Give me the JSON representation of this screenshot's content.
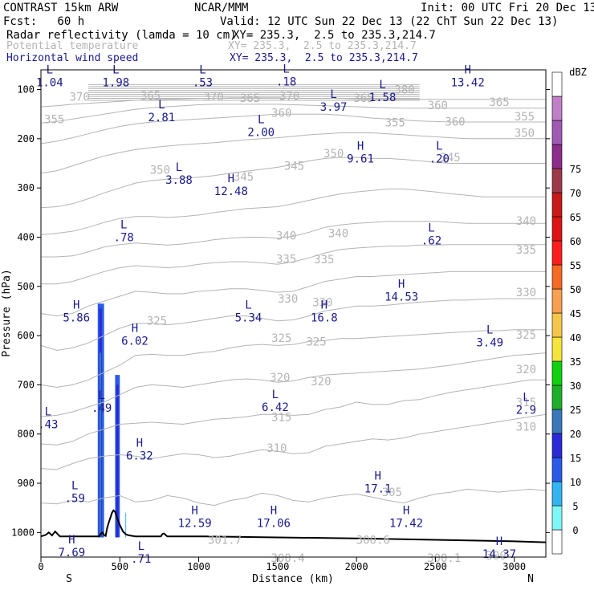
{
  "header": {
    "model": "CONTRAST 15km ARW",
    "institution": "NCAR/MMM",
    "init": "Init: 00 UTC Fri 20 Dec 13",
    "fcst": "Fcst:   60 h",
    "valid": "Valid: 12 UTC Sun 22 Dec 13 (22 ChT Sun 22 Dec 13)",
    "field1_name": "Radar reflectivity (lamda = 10 cm)",
    "field1_xy": "XY= 235.3,  2.5 to 235.3,214.7",
    "field2_name": "Potential temperature",
    "field2_xy": "XY= 235.3,  2.5 to 235.3,214.7",
    "field3_name": "Horizontal wind speed",
    "field3_xy": "XY= 235.3,  2.5 to 235.3,214.7"
  },
  "colors": {
    "theta": "#b4b4b4",
    "wind": "#1a1a8c",
    "terrain": "#000000"
  },
  "chart_data": {
    "type": "cross-section",
    "xlabel": "Distance (km)",
    "ylabel": "Pressure (hPa)",
    "xlim": [
      0,
      3200
    ],
    "ylim": [
      1050,
      60
    ],
    "x_ticks": [
      "0",
      "500",
      "1000",
      "1500",
      "2000",
      "2500",
      "3000"
    ],
    "y_ticks": [
      "100",
      "200",
      "300",
      "400",
      "500",
      "600",
      "700",
      "800",
      "900",
      "1000"
    ],
    "left_end": "S",
    "right_end": "N",
    "colorbar": {
      "unit": "dBZ",
      "levels": [
        "0",
        "5",
        "10",
        "15",
        "20",
        "25",
        "30",
        "35",
        "40",
        "45",
        "50",
        "55",
        "60",
        "65",
        "70",
        "75"
      ],
      "colors": [
        "#ffffff",
        "#7ff7f7",
        "#33b5f2",
        "#2b5ae8",
        "#2a2ad6",
        "#3a78b8",
        "#1fae2a",
        "#10d010",
        "#f5e43c",
        "#f6c64a",
        "#f7a050",
        "#f46a26",
        "#ff1e1e",
        "#dc1414",
        "#c81818",
        "#9c3a4a",
        "#8c2c8c",
        "#a05ab4",
        "#c080c8",
        "#ffffff"
      ]
    },
    "theta_labels": [
      {
        "text": "370",
        "x": 245,
        "p": 115
      },
      {
        "text": "365",
        "x": 695,
        "p": 112
      },
      {
        "text": "370",
        "x": 1095,
        "p": 115
      },
      {
        "text": "365",
        "x": 1325,
        "p": 117
      },
      {
        "text": "370",
        "x": 1575,
        "p": 113
      },
      {
        "text": "365",
        "x": 2045,
        "p": 117
      },
      {
        "text": "380",
        "x": 2305,
        "p": 100
      },
      {
        "text": "360",
        "x": 2515,
        "p": 132
      },
      {
        "text": "365",
        "x": 2905,
        "p": 125
      },
      {
        "text": "355",
        "x": 85,
        "p": 160
      },
      {
        "text": "360",
        "x": 1525,
        "p": 147
      },
      {
        "text": "355",
        "x": 2245,
        "p": 167
      },
      {
        "text": "360",
        "x": 2625,
        "p": 165
      },
      {
        "text": "355",
        "x": 3065,
        "p": 155
      },
      {
        "text": "350",
        "x": 755,
        "p": 263
      },
      {
        "text": "350",
        "x": 1855,
        "p": 230
      },
      {
        "text": "350",
        "x": 3065,
        "p": 188
      },
      {
        "text": "345",
        "x": 1285,
        "p": 277
      },
      {
        "text": "345",
        "x": 1605,
        "p": 255
      },
      {
        "text": "345",
        "x": 2595,
        "p": 238
      },
      {
        "text": "340",
        "x": 1555,
        "p": 397
      },
      {
        "text": "340",
        "x": 1885,
        "p": 392
      },
      {
        "text": "340",
        "x": 3075,
        "p": 367
      },
      {
        "text": "335",
        "x": 1555,
        "p": 444
      },
      {
        "text": "335",
        "x": 1795,
        "p": 445
      },
      {
        "text": "335",
        "x": 3075,
        "p": 425
      },
      {
        "text": "330",
        "x": 1565,
        "p": 525
      },
      {
        "text": "330",
        "x": 1785,
        "p": 532
      },
      {
        "text": "330",
        "x": 3075,
        "p": 512
      },
      {
        "text": "325",
        "x": 735,
        "p": 570
      },
      {
        "text": "325",
        "x": 1525,
        "p": 605
      },
      {
        "text": "325",
        "x": 1745,
        "p": 612
      },
      {
        "text": "325",
        "x": 3075,
        "p": 598
      },
      {
        "text": "320",
        "x": 1515,
        "p": 685
      },
      {
        "text": "320",
        "x": 1775,
        "p": 693
      },
      {
        "text": "320",
        "x": 3075,
        "p": 668
      },
      {
        "text": "315",
        "x": 1525,
        "p": 765
      },
      {
        "text": "315",
        "x": 3075,
        "p": 735
      },
      {
        "text": "310",
        "x": 1495,
        "p": 828
      },
      {
        "text": "310",
        "x": 3075,
        "p": 785
      },
      {
        "text": "305",
        "x": 2225,
        "p": 918
      },
      {
        "text": "301.7",
        "x": 1165,
        "p": 1015
      },
      {
        "text": "300.4",
        "x": 1565,
        "p": 1052
      },
      {
        "text": "300.6",
        "x": 2105,
        "p": 1015
      },
      {
        "text": "300.1",
        "x": 2555,
        "p": 1052
      },
      {
        "text": "300",
        "x": 2885,
        "p": 1047
      }
    ],
    "wind_extrema": [
      {
        "type": "L",
        "value": "1.04",
        "x": 55,
        "p": 87
      },
      {
        "type": "L",
        "value": "1.98",
        "x": 475,
        "p": 87
      },
      {
        "type": "L",
        "value": ".53",
        "x": 1025,
        "p": 87
      },
      {
        "type": "L",
        "value": ".18",
        "x": 1555,
        "p": 85
      },
      {
        "type": "H",
        "value": "13.42",
        "x": 2705,
        "p": 87
      },
      {
        "type": "L",
        "value": "1.58",
        "x": 2165,
        "p": 117
      },
      {
        "type": "L",
        "value": "3.97",
        "x": 1855,
        "p": 137
      },
      {
        "type": "L",
        "value": "2.81",
        "x": 765,
        "p": 158
      },
      {
        "type": "L",
        "value": "2.00",
        "x": 1395,
        "p": 188
      },
      {
        "type": "H",
        "value": "9.61",
        "x": 2025,
        "p": 242
      },
      {
        "type": "L",
        "value": ".20",
        "x": 2525,
        "p": 242
      },
      {
        "type": "L",
        "value": "3.88",
        "x": 875,
        "p": 285
      },
      {
        "type": "H",
        "value": "12.48",
        "x": 1205,
        "p": 308
      },
      {
        "type": "L",
        "value": ".78",
        "x": 525,
        "p": 402
      },
      {
        "type": "L",
        "value": ".62",
        "x": 2475,
        "p": 408
      },
      {
        "type": "H",
        "value": "14.53",
        "x": 2285,
        "p": 522
      },
      {
        "type": "H",
        "value": "5.86",
        "x": 225,
        "p": 565
      },
      {
        "type": "L",
        "value": "5.34",
        "x": 1315,
        "p": 565
      },
      {
        "type": "H",
        "value": "16.8",
        "x": 1795,
        "p": 565
      },
      {
        "type": "H",
        "value": "6.02",
        "x": 595,
        "p": 612
      },
      {
        "type": "L",
        "value": "3.49",
        "x": 2845,
        "p": 615
      },
      {
        "type": "L",
        "value": "6.42",
        "x": 1485,
        "p": 747
      },
      {
        "type": "L",
        "value": "2.9",
        "x": 3075,
        "p": 752
      },
      {
        "type": "L",
        "value": ".43",
        "x": 45,
        "p": 782
      },
      {
        "type": "L",
        "value": ".49",
        "x": 385,
        "p": 748
      },
      {
        "type": "H",
        "value": "6.32",
        "x": 625,
        "p": 845
      },
      {
        "type": "H",
        "value": "17.1",
        "x": 2135,
        "p": 912
      },
      {
        "type": "L",
        "value": ".59",
        "x": 215,
        "p": 932
      },
      {
        "type": "H",
        "value": "12.59",
        "x": 975,
        "p": 982
      },
      {
        "type": "H",
        "value": "17.06",
        "x": 1475,
        "p": 982
      },
      {
        "type": "H",
        "value": "17.42",
        "x": 2315,
        "p": 982
      },
      {
        "type": "H",
        "value": "7.69",
        "x": 195,
        "p": 1042
      },
      {
        "type": "L",
        "value": ".71",
        "x": 635,
        "p": 1055
      },
      {
        "type": "H",
        "value": "14.37",
        "x": 2905,
        "p": 1045
      }
    ],
    "theta_contours": [
      {
        "p": [
          940,
          942,
          935,
          938,
          930,
          925,
          938,
          935,
          925,
          930,
          940,
          945,
          935,
          930,
          920,
          925,
          935,
          938,
          930,
          925,
          922,
          928,
          935,
          940,
          930,
          922,
          918,
          912,
          915,
          918,
          915,
          912,
          915
        ]
      },
      {
        "p": [
          870,
          872,
          860,
          850,
          845,
          842,
          845,
          850,
          845,
          840,
          842,
          848,
          845,
          838,
          832,
          835,
          840,
          838,
          825,
          820,
          815,
          810,
          812,
          808,
          800,
          795,
          790,
          785,
          780,
          775,
          770,
          765,
          760
        ]
      },
      {
        "p": [
          820,
          822,
          815,
          800,
          790,
          780,
          778,
          776,
          778,
          780,
          775,
          770,
          768,
          765,
          760,
          760,
          762,
          760,
          750,
          745,
          735,
          740,
          740,
          732,
          730,
          722,
          715,
          710,
          705,
          700,
          695,
          690,
          690
        ]
      },
      {
        "p": [
          765,
          762,
          755,
          745,
          735,
          720,
          705,
          700,
          702,
          705,
          700,
          695,
          690,
          688,
          690,
          695,
          692,
          685,
          680,
          678,
          676,
          674,
          672,
          670,
          668,
          664,
          660,
          655,
          650,
          645,
          640,
          638,
          635
        ]
      },
      {
        "p": [
          700,
          705,
          700,
          690,
          675,
          660,
          640,
          638,
          640,
          640,
          635,
          632,
          625,
          620,
          618,
          620,
          618,
          612,
          610,
          606,
          606,
          604,
          602,
          600,
          598,
          596,
          594,
          592,
          590,
          590,
          588,
          588,
          588
        ]
      },
      {
        "p": [
          620,
          630,
          625,
          615,
          600,
          585,
          575,
          575,
          578,
          575,
          570,
          565,
          560,
          560,
          565,
          570,
          568,
          560,
          550,
          545,
          540,
          540,
          538,
          535,
          532,
          530,
          528,
          528,
          526,
          525,
          525,
          525,
          525
        ]
      },
      {
        "p": [
          555,
          560,
          555,
          540,
          530,
          520,
          510,
          512,
          515,
          515,
          510,
          508,
          505,
          505,
          508,
          512,
          510,
          500,
          490,
          485,
          480,
          480,
          478,
          476,
          474,
          472,
          470,
          470,
          470,
          470,
          470,
          470,
          470
        ]
      },
      {
        "p": [
          495,
          495,
          490,
          480,
          470,
          462,
          458,
          460,
          462,
          460,
          455,
          452,
          450,
          450,
          452,
          455,
          450,
          442,
          432,
          425,
          422,
          420,
          418,
          418,
          416,
          416,
          415,
          415,
          415,
          415,
          415,
          415,
          415
        ]
      },
      {
        "p": [
          440,
          440,
          438,
          430,
          420,
          415,
          412,
          414,
          416,
          414,
          410,
          405,
          402,
          400,
          400,
          402,
          398,
          390,
          380,
          375,
          372,
          370,
          368,
          368,
          368,
          368,
          370,
          372,
          372,
          372,
          372,
          372,
          372
        ]
      },
      {
        "p": [
          395,
          392,
          388,
          380,
          370,
          362,
          358,
          358,
          360,
          358,
          355,
          350,
          346,
          342,
          340,
          338,
          332,
          325,
          318,
          312,
          308,
          305,
          302,
          302,
          305,
          308,
          312,
          315,
          318,
          318,
          318,
          318,
          318
        ]
      },
      {
        "p": [
          340,
          338,
          332,
          322,
          310,
          300,
          290,
          285,
          282,
          280,
          278,
          275,
          270,
          266,
          262,
          258,
          252,
          245,
          240,
          238,
          238,
          240,
          240,
          242,
          245,
          248,
          250,
          250,
          250,
          250,
          250,
          250,
          250
        ]
      },
      {
        "p": [
          270,
          265,
          255,
          245,
          235,
          228,
          222,
          218,
          215,
          212,
          210,
          208,
          205,
          202,
          200,
          198,
          195,
          192,
          190,
          188,
          188,
          188,
          190,
          192,
          194,
          196,
          198,
          200,
          200,
          200,
          200,
          200,
          200
        ]
      },
      {
        "p": [
          210,
          205,
          198,
          190,
          182,
          175,
          170,
          166,
          164,
          162,
          160,
          158,
          156,
          154,
          152,
          150,
          150,
          150,
          150,
          152,
          155,
          158,
          160,
          162,
          164,
          165,
          166,
          166,
          166,
          166,
          166,
          166,
          166
        ]
      },
      {
        "p": [
          168,
          165,
          160,
          155,
          150,
          145,
          140,
          137,
          135,
          133,
          131,
          130,
          130,
          130,
          130,
          130,
          131,
          132,
          133,
          134,
          135,
          136,
          137,
          138,
          138,
          138,
          138,
          138,
          138,
          138,
          138,
          138,
          138
        ]
      },
      {
        "p": [
          135,
          133,
          130,
          128,
          126,
          124,
          122,
          121,
          120,
          119,
          118,
          118,
          117,
          117,
          117,
          117,
          118,
          118,
          118,
          118,
          119,
          120,
          120,
          120,
          120,
          120,
          120,
          120,
          120,
          120,
          120,
          120,
          120
        ]
      }
    ],
    "terrain": {
      "x": [
        0,
        30,
        50,
        70,
        90,
        120,
        200,
        300,
        360,
        370,
        380,
        390,
        400,
        410,
        420,
        430,
        440,
        450,
        460,
        470,
        480,
        500,
        520,
        540,
        560,
        600,
        700,
        760,
        770,
        780,
        790,
        800,
        1000,
        1500,
        2000,
        2500,
        3000,
        3200
      ],
      "p": [
        1008,
        1005,
        1000,
        1006,
        998,
        1008,
        1008,
        1008,
        1008,
        1008,
        1002,
        1000,
        1005,
        1007,
        990,
        980,
        970,
        960,
        955,
        958,
        968,
        985,
        998,
        1004,
        1006,
        1008,
        1008,
        1008,
        1003,
        1002,
        1005,
        1008,
        1008,
        1010,
        1012,
        1015,
        1018,
        1020
      ]
    },
    "reflectivity_cells": [
      {
        "x0": 360,
        "x1": 400,
        "p_top": 535,
        "p_bot": 1010,
        "dbz": 10
      },
      {
        "x0": 370,
        "x1": 385,
        "p_top": 545,
        "p_bot": 1010,
        "dbz": 15
      },
      {
        "x0": 372,
        "x1": 382,
        "p_top": 635,
        "p_bot": 1010,
        "dbz": 20
      },
      {
        "x0": 470,
        "x1": 500,
        "p_top": 680,
        "p_bot": 1010,
        "dbz": 10
      },
      {
        "x0": 477,
        "x1": 492,
        "p_top": 700,
        "p_bot": 1010,
        "dbz": 15
      },
      {
        "x0": 535,
        "x1": 540,
        "p_top": 960,
        "p_bot": 1010,
        "dbz": 5
      }
    ]
  }
}
